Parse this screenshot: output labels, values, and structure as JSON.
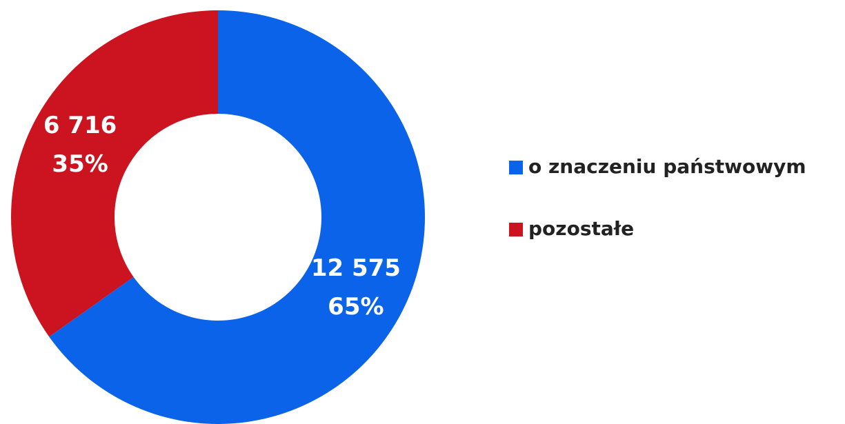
{
  "chart_data": {
    "type": "donut",
    "categories": [
      "o znaczeniu państwowym",
      "pozostałe"
    ],
    "values": [
      12575,
      6716
    ],
    "value_labels": [
      "12 575",
      "6 716"
    ],
    "percents": [
      65,
      35
    ],
    "percent_labels": [
      "65%",
      "35%"
    ],
    "colors": [
      "#0a63e8",
      "#cc1420"
    ],
    "legend": "right"
  }
}
